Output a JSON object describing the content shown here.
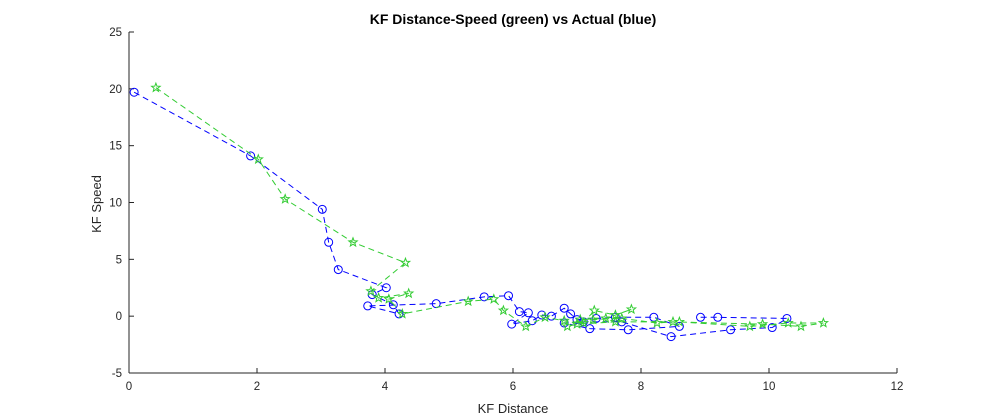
{
  "chart_data": {
    "type": "line",
    "title": "KF Distance-Speed (green) vs Actual (blue)",
    "xlabel": "KF Distance",
    "ylabel": "KF Speed",
    "xlim": [
      0,
      12
    ],
    "ylim": [
      -5,
      25
    ],
    "xticks": [
      "0",
      "2",
      "4",
      "6",
      "8",
      "10",
      "12"
    ],
    "yticks": [
      "-5",
      "0",
      "5",
      "10",
      "15",
      "20",
      "25"
    ],
    "grid": false,
    "series": [
      {
        "color": "#0000ff",
        "marker": "circle",
        "linestyle": "dashed",
        "points": [
          [
            0.08,
            19.7
          ],
          [
            1.9,
            14.1
          ],
          [
            3.02,
            9.4
          ],
          [
            3.12,
            6.5
          ],
          [
            3.27,
            4.1
          ],
          [
            4.02,
            2.5
          ],
          [
            3.8,
            1.9
          ],
          [
            4.13,
            1.0
          ],
          [
            4.22,
            0.2
          ],
          [
            3.73,
            0.9
          ],
          [
            4.8,
            1.1
          ],
          [
            5.55,
            1.7
          ],
          [
            5.93,
            1.8
          ],
          [
            6.1,
            0.4
          ],
          [
            6.24,
            0.3
          ],
          [
            5.98,
            -0.7
          ],
          [
            6.3,
            -0.4
          ],
          [
            6.45,
            0.1
          ],
          [
            6.6,
            0.0
          ],
          [
            6.8,
            0.7
          ],
          [
            6.9,
            0.2
          ],
          [
            7.0,
            -0.3
          ],
          [
            7.3,
            -0.2
          ],
          [
            7.6,
            -0.1
          ],
          [
            8.2,
            -0.1
          ],
          [
            8.6,
            -0.9
          ],
          [
            7.8,
            -1.2
          ],
          [
            7.2,
            -1.1
          ],
          [
            6.8,
            -0.6
          ],
          [
            7.1,
            -0.5
          ],
          [
            7.7,
            -0.5
          ],
          [
            8.47,
            -1.8
          ],
          [
            9.4,
            -1.2
          ],
          [
            10.05,
            -1.0
          ],
          [
            10.28,
            -0.2
          ],
          [
            9.2,
            -0.1
          ],
          [
            8.93,
            -0.1
          ]
        ]
      },
      {
        "color": "#33cc33",
        "marker": "star",
        "linestyle": "dashed",
        "points": [
          [
            0.42,
            20.1
          ],
          [
            2.02,
            13.8
          ],
          [
            2.44,
            10.3
          ],
          [
            3.5,
            6.5
          ],
          [
            4.32,
            4.7
          ],
          [
            3.78,
            2.2
          ],
          [
            3.9,
            1.6
          ],
          [
            4.37,
            2.0
          ],
          [
            4.06,
            1.5
          ],
          [
            4.27,
            0.2
          ],
          [
            5.3,
            1.3
          ],
          [
            5.7,
            1.5
          ],
          [
            5.85,
            0.5
          ],
          [
            6.2,
            -0.9
          ],
          [
            6.5,
            -0.1
          ],
          [
            6.8,
            -0.4
          ],
          [
            7.1,
            -0.6
          ],
          [
            7.27,
            0.5
          ],
          [
            7.6,
            0.1
          ],
          [
            7.85,
            0.6
          ],
          [
            7.45,
            -0.2
          ],
          [
            7.05,
            -0.3
          ],
          [
            7.25,
            -0.3
          ],
          [
            7.7,
            -0.2
          ],
          [
            8.25,
            -0.6
          ],
          [
            8.5,
            -0.5
          ],
          [
            9.9,
            -0.7
          ],
          [
            10.5,
            -0.9
          ],
          [
            10.85,
            -0.6
          ],
          [
            10.3,
            -0.6
          ],
          [
            9.7,
            -0.9
          ],
          [
            8.6,
            -0.5
          ],
          [
            7.6,
            -0.5
          ],
          [
            7.0,
            -0.7
          ],
          [
            6.85,
            -0.9
          ]
        ]
      }
    ]
  }
}
